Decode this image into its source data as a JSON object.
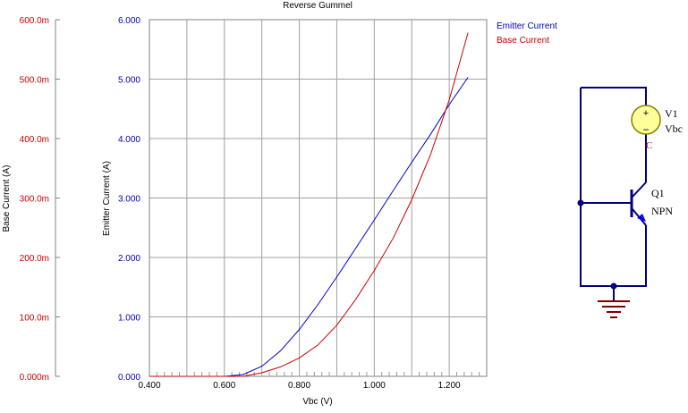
{
  "chart_data": {
    "type": "line",
    "title": "Reverse Gummel",
    "xlabel": "Vbc (V)",
    "xlim": [
      0.4,
      1.3
    ],
    "x_ticks": [
      "0.400",
      "0.600",
      "0.800",
      "1.000",
      "1.200"
    ],
    "left_axis": {
      "label": "Base Current (A)",
      "ylim": [
        0,
        0.6
      ],
      "tick_labels": [
        "0.000m",
        "100.0m",
        "200.0m",
        "300.0m",
        "400.0m",
        "500.0m",
        "600.0m"
      ],
      "color": "#cc0000"
    },
    "right_axis": {
      "label": "Emitter Current (A)",
      "ylim": [
        0,
        6
      ],
      "tick_labels": [
        "0.000",
        "1.000",
        "2.000",
        "3.000",
        "4.000",
        "5.000",
        "6.000"
      ],
      "color": "#0000aa"
    },
    "grid": true,
    "legend_position": "top-right",
    "series": [
      {
        "name": "Emitter Current",
        "axis": "right",
        "color": "#0000cc",
        "x": [
          0.4,
          0.6,
          0.65,
          0.7,
          0.75,
          0.8,
          0.85,
          0.9,
          0.95,
          1.0,
          1.05,
          1.1,
          1.15,
          1.2,
          1.25
        ],
        "y": [
          0,
          0,
          0.03,
          0.17,
          0.43,
          0.79,
          1.21,
          1.67,
          2.15,
          2.63,
          3.12,
          3.6,
          4.07,
          4.57,
          5.03
        ]
      },
      {
        "name": "Base Current",
        "axis": "left",
        "color": "#cc0000",
        "x": [
          0.4,
          0.65,
          0.7,
          0.75,
          0.8,
          0.85,
          0.9,
          0.95,
          1.0,
          1.05,
          1.1,
          1.15,
          1.2,
          1.25
        ],
        "y": [
          0,
          0,
          0.006,
          0.016,
          0.031,
          0.053,
          0.086,
          0.129,
          0.178,
          0.232,
          0.297,
          0.373,
          0.465,
          0.578
        ]
      }
    ]
  },
  "schematic": {
    "source_ref": "V1",
    "source_value": "Vbc",
    "source_pin": "C",
    "transistor_ref": "Q1",
    "transistor_type": "NPN",
    "plus": "+",
    "minus": "−",
    "wire_color": "#000080",
    "source_fill": "#ffff99",
    "ground_color": "#800000"
  }
}
